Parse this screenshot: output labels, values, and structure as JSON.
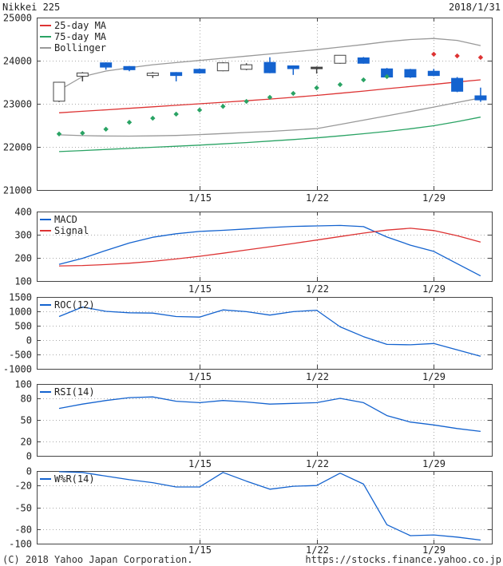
{
  "header": {
    "title": "Nikkei 225",
    "date": "2018/1/31"
  },
  "footer": {
    "copyright": "(C) 2018 Yahoo Japan Corporation.",
    "url": "https://stocks.finance.yahoo.co.jp"
  },
  "colors": {
    "blue": "#1463cf",
    "red": "#dd3333",
    "green": "#2aa364",
    "gray": "#999999",
    "frame": "#444444",
    "grid": "#aaaaaa",
    "text": "#222222",
    "candle_up_fill": "#ffffff",
    "candle_up_stroke": "#444444",
    "doji": "#444444"
  },
  "chart_data": [
    {
      "type": "candlestick",
      "name": "price",
      "ylim": [
        21000,
        25000
      ],
      "yticks": [
        21000,
        22000,
        23000,
        24000,
        25000
      ],
      "xticks": [
        {
          "label": "1/15",
          "day": 6
        },
        {
          "label": "1/22",
          "day": 11
        },
        {
          "label": "1/29",
          "day": 16
        }
      ],
      "legend": [
        {
          "label": "25-day MA",
          "color": "red"
        },
        {
          "label": "75-day MA",
          "color": "green"
        },
        {
          "label": "Bollinger",
          "color": "gray"
        }
      ],
      "dates": [
        "1/4",
        "1/5",
        "1/9",
        "1/10",
        "1/11",
        "1/12",
        "1/15",
        "1/16",
        "1/17",
        "1/18",
        "1/19",
        "1/22",
        "1/23",
        "1/24",
        "1/25",
        "1/26",
        "1/29",
        "1/30",
        "1/31"
      ],
      "candles": [
        {
          "date": "1/4",
          "open": 23060,
          "high": 23510,
          "low": 23040,
          "close": 23500,
          "dir": "up"
        },
        {
          "date": "1/5",
          "open": 23640,
          "high": 23735,
          "low": 23520,
          "close": 23715,
          "dir": "up"
        },
        {
          "date": "1/9",
          "open": 23950,
          "high": 23960,
          "low": 23790,
          "close": 23850,
          "dir": "down"
        },
        {
          "date": "1/10",
          "open": 23865,
          "high": 23875,
          "low": 23755,
          "close": 23790,
          "dir": "down"
        },
        {
          "date": "1/11",
          "open": 23655,
          "high": 23735,
          "low": 23600,
          "close": 23710,
          "dir": "up"
        },
        {
          "date": "1/12",
          "open": 23725,
          "high": 23735,
          "low": 23520,
          "close": 23655,
          "dir": "down"
        },
        {
          "date": "1/15",
          "open": 23800,
          "high": 23820,
          "low": 23700,
          "close": 23715,
          "dir": "down"
        },
        {
          "date": "1/16",
          "open": 23765,
          "high": 23965,
          "low": 23755,
          "close": 23950,
          "dir": "up"
        },
        {
          "date": "1/17",
          "open": 23800,
          "high": 23940,
          "low": 23780,
          "close": 23905,
          "dir": "up"
        },
        {
          "date": "1/18",
          "open": 23960,
          "high": 24080,
          "low": 23710,
          "close": 23720,
          "dir": "down"
        },
        {
          "date": "1/19",
          "open": 23880,
          "high": 23890,
          "low": 23670,
          "close": 23815,
          "dir": "down"
        },
        {
          "date": "1/22",
          "open": 23850,
          "high": 23865,
          "low": 23700,
          "close": 23845,
          "dir": "doji"
        },
        {
          "date": "1/23",
          "open": 23940,
          "high": 24130,
          "low": 23930,
          "close": 24125,
          "dir": "up"
        },
        {
          "date": "1/24",
          "open": 24065,
          "high": 24085,
          "low": 23930,
          "close": 23940,
          "dir": "down"
        },
        {
          "date": "1/25",
          "open": 23810,
          "high": 23830,
          "low": 23595,
          "close": 23620,
          "dir": "down"
        },
        {
          "date": "1/26",
          "open": 23795,
          "high": 23810,
          "low": 23600,
          "close": 23620,
          "dir": "down"
        },
        {
          "date": "1/29",
          "open": 23755,
          "high": 23810,
          "low": 23640,
          "close": 23655,
          "dir": "down"
        },
        {
          "date": "1/30",
          "open": 23590,
          "high": 23620,
          "low": 23270,
          "close": 23290,
          "dir": "down"
        },
        {
          "date": "1/31",
          "open": 23185,
          "high": 23375,
          "low": 23045,
          "close": 23090,
          "dir": "down"
        }
      ],
      "overlays": [
        {
          "name": "25-day-ma",
          "style": "line",
          "color": "red",
          "start_day": 0,
          "values": [
            22790,
            22825,
            22860,
            22895,
            22930,
            22965,
            23000,
            23035,
            23070,
            23110,
            23150,
            23195,
            23245,
            23295,
            23350,
            23400,
            23450,
            23505,
            23555
          ]
        },
        {
          "name": "75-day-ma",
          "style": "line",
          "color": "green",
          "start_day": 0,
          "values": [
            21890,
            21915,
            21940,
            21965,
            21990,
            22015,
            22040,
            22070,
            22100,
            22135,
            22170,
            22210,
            22255,
            22305,
            22360,
            22420,
            22490,
            22585,
            22690
          ]
        },
        {
          "name": "bollinger-upper",
          "style": "line",
          "color": "gray",
          "start_day": 0,
          "values": [
            23315,
            23630,
            23760,
            23835,
            23905,
            23955,
            24005,
            24055,
            24105,
            24155,
            24205,
            24255,
            24315,
            24375,
            24440,
            24490,
            24515,
            24470,
            24350
          ]
        },
        {
          "name": "bollinger-lower",
          "style": "line",
          "color": "gray",
          "start_day": 0,
          "values": [
            22280,
            22262,
            22252,
            22250,
            22255,
            22265,
            22285,
            22310,
            22335,
            22360,
            22390,
            22425,
            22520,
            22620,
            22720,
            22820,
            22925,
            23030,
            23135
          ]
        },
        {
          "name": "sar-up-dots",
          "style": "dots",
          "color": "green",
          "start_day": 0,
          "values": [
            22300,
            22320,
            22410,
            22570,
            22665,
            22760,
            22855,
            22940,
            23055,
            23150,
            23240,
            23370,
            23445,
            23555,
            23630
          ]
        },
        {
          "name": "sar-down-dots",
          "style": "dots",
          "color": "red",
          "start_day": 16,
          "values": [
            24150,
            24110,
            24075
          ]
        }
      ]
    },
    {
      "type": "line",
      "name": "macd",
      "ylim": [
        100,
        400
      ],
      "yticks": [
        100,
        200,
        300,
        400
      ],
      "xticks": [
        {
          "label": "1/15",
          "day": 6
        },
        {
          "label": "1/22",
          "day": 11
        },
        {
          "label": "1/29",
          "day": 16
        }
      ],
      "legend": [
        {
          "label": "MACD",
          "color": "blue"
        },
        {
          "label": "Signal",
          "color": "red"
        }
      ],
      "series": [
        {
          "name": "MACD",
          "color": "blue",
          "values": [
            172,
            198,
            232,
            264,
            289,
            304,
            314,
            319,
            325,
            331,
            336,
            338,
            340,
            335,
            290,
            255,
            228,
            175,
            122
          ]
        },
        {
          "name": "Signal",
          "color": "red",
          "values": [
            165,
            167,
            171,
            177,
            185,
            195,
            207,
            220,
            234,
            248,
            262,
            277,
            292,
            307,
            320,
            328,
            318,
            296,
            268
          ]
        }
      ]
    },
    {
      "type": "line",
      "name": "roc",
      "ylim": [
        -1000,
        1500
      ],
      "yticks": [
        -1000,
        -500,
        0,
        500,
        1000,
        1500
      ],
      "xticks": [
        {
          "label": "1/15",
          "day": 6
        },
        {
          "label": "1/22",
          "day": 11
        },
        {
          "label": "1/29",
          "day": 16
        }
      ],
      "legend": [
        {
          "label": "ROC(12)",
          "color": "blue"
        }
      ],
      "series": [
        {
          "name": "ROC(12)",
          "color": "blue",
          "values": [
            820,
            1150,
            1000,
            950,
            940,
            820,
            800,
            1050,
            990,
            870,
            990,
            1040,
            460,
            120,
            -150,
            -165,
            -120,
            -340,
            -560
          ]
        }
      ]
    },
    {
      "type": "line",
      "name": "rsi",
      "ylim": [
        0,
        100
      ],
      "yticks": [
        0,
        20,
        50,
        80,
        100
      ],
      "xticks": [
        {
          "label": "1/15",
          "day": 6
        },
        {
          "label": "1/22",
          "day": 11
        },
        {
          "label": "1/29",
          "day": 16
        }
      ],
      "legend": [
        {
          "label": "RSI(14)",
          "color": "blue"
        }
      ],
      "series": [
        {
          "name": "RSI(14)",
          "color": "blue",
          "values": [
            66,
            72,
            77,
            81,
            82,
            76,
            74,
            77,
            75,
            72,
            73,
            74,
            80,
            74,
            56,
            47,
            43,
            38,
            34
          ]
        }
      ]
    },
    {
      "type": "line",
      "name": "wpr",
      "ylim": [
        -100,
        0
      ],
      "yticks": [
        -100,
        -80,
        -50,
        -20,
        0
      ],
      "xticks": [
        {
          "label": "1/15",
          "day": 6
        },
        {
          "label": "1/22",
          "day": 11
        },
        {
          "label": "1/29",
          "day": 16
        }
      ],
      "legend": [
        {
          "label": "W%R(14)",
          "color": "blue"
        }
      ],
      "series": [
        {
          "name": "W%R(14)",
          "color": "blue",
          "values": [
            -1,
            -2,
            -7,
            -12,
            -16,
            -22,
            -22,
            -2,
            -14,
            -25,
            -21,
            -20,
            -3,
            -18,
            -74,
            -89,
            -88,
            -91,
            -95
          ]
        }
      ]
    }
  ]
}
